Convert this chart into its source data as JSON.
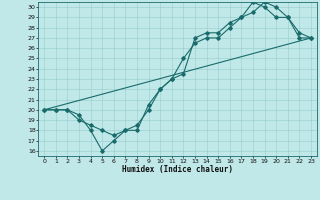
{
  "background_color": "#c0e8e8",
  "grid_color": "#98cccc",
  "line_color": "#1a6b6b",
  "xlabel": "Humidex (Indice chaleur)",
  "xlim": [
    -0.5,
    23.5
  ],
  "ylim": [
    15.5,
    30.5
  ],
  "xticks": [
    0,
    1,
    2,
    3,
    4,
    5,
    6,
    7,
    8,
    9,
    10,
    11,
    12,
    13,
    14,
    15,
    16,
    17,
    18,
    19,
    20,
    21,
    22,
    23
  ],
  "yticks": [
    16,
    17,
    18,
    19,
    20,
    21,
    22,
    23,
    24,
    25,
    26,
    27,
    28,
    29,
    30
  ],
  "line1": {
    "x": [
      0,
      1,
      2,
      3,
      4,
      5,
      6,
      7,
      8,
      9,
      10,
      11,
      12,
      13,
      14,
      15,
      16,
      17,
      18,
      19,
      20,
      21,
      22,
      23
    ],
    "y": [
      20,
      20,
      20,
      19,
      18.5,
      18,
      17.5,
      18,
      18.5,
      20,
      22,
      23,
      25,
      26.5,
      27,
      27,
      28,
      29,
      29.5,
      30.5,
      30,
      29,
      27,
      27
    ]
  },
  "line2": {
    "x": [
      0,
      1,
      2,
      3,
      4,
      5,
      6,
      7,
      8,
      9,
      10,
      11,
      12,
      13,
      14,
      15,
      16,
      17,
      18,
      19,
      20,
      21,
      22,
      23
    ],
    "y": [
      20,
      20,
      20,
      19.5,
      18,
      16,
      17,
      18,
      18,
      20.5,
      22,
      23,
      23.5,
      27,
      27.5,
      27.5,
      28.5,
      29,
      30.5,
      30,
      29,
      29,
      27.5,
      27
    ]
  },
  "line3": {
    "x": [
      0,
      23
    ],
    "y": [
      20,
      27
    ]
  },
  "figsize": [
    3.2,
    2.0
  ],
  "dpi": 100
}
